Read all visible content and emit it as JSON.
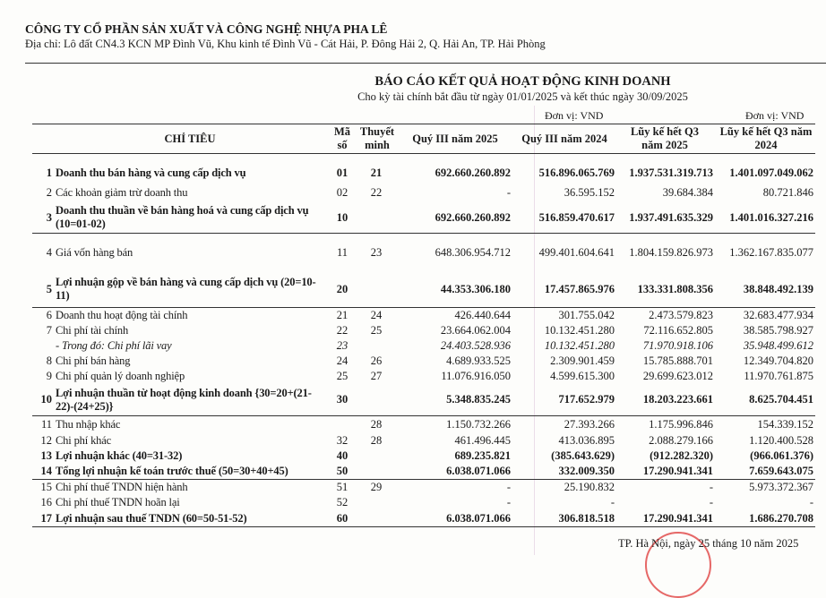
{
  "company": {
    "name": "CÔNG TY CỔ PHẦN SẢN XUẤT VÀ CÔNG NGHỆ NHỰA PHA LÊ",
    "address": "Địa chỉ: Lô đất CN4.3 KCN MP Đình Vũ, Khu kinh tế Đình Vũ - Cát Hải, P. Đông Hải 2, Q. Hải An, TP. Hải Phòng"
  },
  "report": {
    "title": "BÁO CÁO KẾT QUẢ HOẠT ĐỘNG KINH DOANH",
    "subtitle": "Cho kỳ tài chính bắt đầu từ ngày 01/01/2025 và kết thúc ngày 30/09/2025",
    "unit_quarter": "Đơn vị: VND",
    "unit_ytd": "Đơn vị: VND",
    "headers": {
      "label": "CHỈ TIÊU",
      "code": "Mã số",
      "note": "Thuyết minh",
      "v1": "Quý III năm 2025",
      "v2": "Quý III năm 2024",
      "v3": "Lũy kế hết Q3 năm 2025",
      "v4": "Lũy kế hết Q3 năm 2024"
    },
    "rows": [
      {
        "no": "1",
        "label": "Doanh thu bán hàng và cung cấp dịch vụ",
        "code": "01",
        "note": "21",
        "v1": "692.660.260.892",
        "v2": "516.896.065.769",
        "v3": "1.937.531.319.713",
        "v4": "1.401.097.049.062",
        "style": "b"
      },
      {
        "no": "2",
        "label": "Các khoản giảm trừ doanh thu",
        "code": "02",
        "note": "22",
        "v1": "-",
        "v2": "36.595.152",
        "v3": "39.684.384",
        "v4": "80.721.846",
        "style": ""
      },
      {
        "no": "3",
        "label": "Doanh thu thuần về bán hàng hoá và cung cấp dịch vụ (10=01-02)",
        "code": "10",
        "note": "",
        "v1": "692.660.260.892",
        "v2": "516.859.470.617",
        "v3": "1.937.491.635.329",
        "v4": "1.401.016.327.216",
        "style": "b"
      },
      {
        "no": "4",
        "label": "Giá vốn hàng bán",
        "code": "11",
        "note": "23",
        "v1": "648.306.954.712",
        "v2": "499.401.604.641",
        "v3": "1.804.159.826.973",
        "v4": "1.362.167.835.077",
        "style": ""
      },
      {
        "no": "5",
        "label": "Lợi nhuận gộp về bán hàng và cung cấp dịch vụ (20=10-11)",
        "code": "20",
        "note": "",
        "v1": "44.353.306.180",
        "v2": "17.457.865.976",
        "v3": "133.331.808.356",
        "v4": "38.848.492.139",
        "style": "b"
      },
      {
        "no": "6",
        "label": "Doanh thu hoạt động tài chính",
        "code": "21",
        "note": "24",
        "v1": "426.440.644",
        "v2": "301.755.042",
        "v3": "2.473.579.823",
        "v4": "32.683.477.934",
        "style": ""
      },
      {
        "no": "7",
        "label": "Chi phí tài chính",
        "code": "22",
        "note": "25",
        "v1": "23.664.062.004",
        "v2": "10.132.451.280",
        "v3": "72.116.652.805",
        "v4": "38.585.798.927",
        "style": ""
      },
      {
        "no": "",
        "label": "- Trong đó: Chi phí lãi vay",
        "code": "23",
        "note": "",
        "v1": "24.403.528.936",
        "v2": "10.132.451.280",
        "v3": "71.970.918.106",
        "v4": "35.948.499.612",
        "style": "i"
      },
      {
        "no": "8",
        "label": "Chi phí bán hàng",
        "code": "24",
        "note": "26",
        "v1": "4.689.933.525",
        "v2": "2.309.901.459",
        "v3": "15.785.888.701",
        "v4": "12.349.704.820",
        "style": ""
      },
      {
        "no": "9",
        "label": "Chi phí quản lý doanh nghiệp",
        "code": "25",
        "note": "27",
        "v1": "11.076.916.050",
        "v2": "4.599.615.300",
        "v3": "29.699.623.012",
        "v4": "11.970.761.875",
        "style": ""
      },
      {
        "no": "10",
        "label": "Lợi nhuận thuần từ hoạt động kinh doanh {30=20+(21-22)-(24+25)}",
        "code": "30",
        "note": "",
        "v1": "5.348.835.245",
        "v2": "717.652.979",
        "v3": "18.203.223.661",
        "v4": "8.625.704.451",
        "style": "b"
      },
      {
        "no": "11",
        "label": "Thu nhập khác",
        "code": "",
        "note": "28",
        "v1": "1.150.732.266",
        "v2": "27.393.266",
        "v3": "1.175.996.846",
        "v4": "154.339.152",
        "style": ""
      },
      {
        "no": "12",
        "label": "Chi phí khác",
        "code": "32",
        "note": "28",
        "v1": "461.496.445",
        "v2": "413.036.895",
        "v3": "2.088.279.166",
        "v4": "1.120.400.528",
        "style": ""
      },
      {
        "no": "13",
        "label": "Lợi nhuận khác (40=31-32)",
        "code": "40",
        "note": "",
        "v1": "689.235.821",
        "v2": "(385.643.629)",
        "v3": "(912.282.320)",
        "v4": "(966.061.376)",
        "style": "b"
      },
      {
        "no": "14",
        "label": "Tổng lợi nhuận kế toán trước thuế (50=30+40+45)",
        "code": "50",
        "note": "",
        "v1": "6.038.071.066",
        "v2": "332.009.350",
        "v3": "17.290.941.341",
        "v4": "7.659.643.075",
        "style": "b"
      },
      {
        "no": "15",
        "label": "Chi phí thuế TNDN hiện hành",
        "code": "51",
        "note": "29",
        "v1": "-",
        "v2": "25.190.832",
        "v3": "-",
        "v4": "5.973.372.367",
        "style": ""
      },
      {
        "no": "16",
        "label": "Chi phí thuế TNDN hoãn lại",
        "code": "52",
        "note": "",
        "v1": "-",
        "v2": "-",
        "v3": "-",
        "v4": "-",
        "style": ""
      },
      {
        "no": "17",
        "label": "Lợi nhuận sau thuế TNDN (60=50-51-52)",
        "code": "60",
        "note": "",
        "v1": "6.038.071.066",
        "v2": "306.818.518",
        "v3": "17.290.941.341",
        "v4": "1.686.270.708",
        "style": "b"
      }
    ]
  },
  "footer": {
    "place_date": "TP. Hà Nội, ngày 25 tháng 10 năm 2025"
  }
}
